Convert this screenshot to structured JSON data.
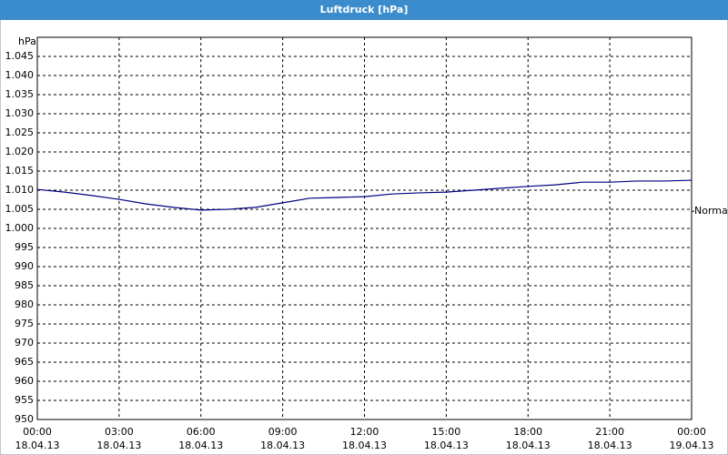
{
  "chart_data": {
    "type": "line",
    "title": "Luftdruck [hPa]",
    "y_label": "hPa",
    "x": [
      0,
      1,
      2,
      3,
      4,
      5,
      6,
      7,
      8,
      9,
      10,
      11,
      12,
      13,
      14,
      15,
      16,
      17,
      18,
      19,
      20,
      21,
      22,
      23,
      24
    ],
    "series": [
      {
        "name": "Luftdruck",
        "color": "#000080",
        "values": [
          1010.2,
          1009.5,
          1008.6,
          1007.6,
          1006.4,
          1005.5,
          1004.8,
          1005.0,
          1005.5,
          1006.7,
          1007.9,
          1008.1,
          1008.3,
          1009.0,
          1009.3,
          1009.5,
          1010.0,
          1010.5,
          1011.0,
          1011.4,
          1012.1,
          1012.1,
          1012.4,
          1012.4,
          1012.6
        ]
      }
    ],
    "xlim": [
      0,
      24
    ],
    "xticks": [
      {
        "value": 0,
        "label": "00:00"
      },
      {
        "value": 3,
        "label": "03:00"
      },
      {
        "value": 6,
        "label": "06:00"
      },
      {
        "value": 9,
        "label": "09:00"
      },
      {
        "value": 12,
        "label": "12:00"
      },
      {
        "value": 15,
        "label": "15:00"
      },
      {
        "value": 18,
        "label": "18:00"
      },
      {
        "value": 21,
        "label": "21:00"
      },
      {
        "value": 24,
        "label": "00:00"
      }
    ],
    "xtick_dates": [
      "18.04.13",
      "18.04.13",
      "18.04.13",
      "18.04.13",
      "18.04.13",
      "18.04.13",
      "18.04.13",
      "18.04.13",
      "19.04.13"
    ],
    "ylim": [
      950,
      1050
    ],
    "yticks": [
      950,
      955,
      960,
      965,
      970,
      975,
      980,
      985,
      990,
      995,
      {
        "value": 1000,
        "label": "1.000"
      },
      {
        "value": 1005,
        "label": "1.005"
      },
      {
        "value": 1010,
        "label": "1.010"
      },
      {
        "value": 1015,
        "label": "1.015"
      },
      {
        "value": 1020,
        "label": "1.020"
      },
      {
        "value": 1025,
        "label": "1.025"
      },
      {
        "value": 1030,
        "label": "1.030"
      },
      {
        "value": 1035,
        "label": "1.035"
      },
      {
        "value": 1040,
        "label": "1.040"
      },
      {
        "value": 1045,
        "label": "1.045"
      }
    ],
    "annotations": [
      {
        "text": "Normal",
        "y": 1004.5
      }
    ],
    "grid": true
  }
}
